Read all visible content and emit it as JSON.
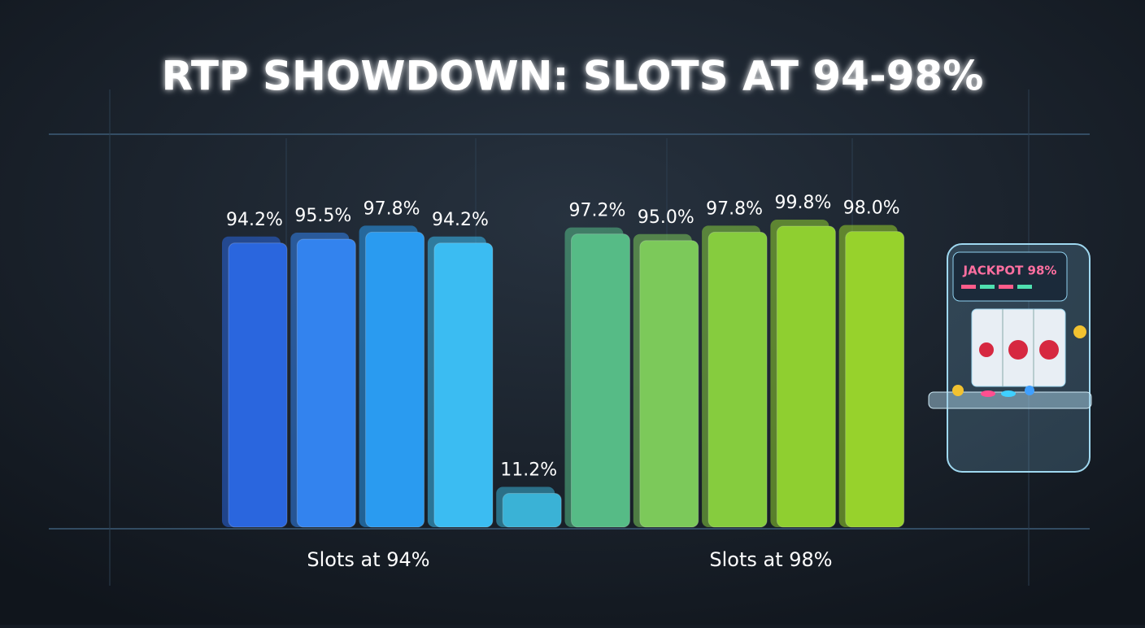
{
  "chart_data": {
    "type": "bar",
    "title": "RTP SHOWDOWN: SLOTS AT 94-98%",
    "categories": [
      null,
      null,
      null,
      null,
      null,
      null,
      null,
      null,
      null,
      null
    ],
    "values": [
      94.2,
      95.5,
      97.8,
      94.2,
      11.2,
      97.2,
      95.0,
      97.8,
      99.8,
      98.0
    ],
    "value_labels": [
      "94.2%",
      "95.5%",
      "97.8%",
      "94.2%",
      "11.2%",
      "97.2%",
      "95.0%",
      "97.8%",
      "99.8%",
      "98.0%"
    ],
    "colors": [
      "#2a66de",
      "#3383ee",
      "#2a9bf0",
      "#3bbcf2",
      "#3ab2d6",
      "#56bb86",
      "#7cc95a",
      "#86cc3e",
      "#8fcf30",
      "#97d22c"
    ],
    "group_labels": [
      "Slots at 94%",
      "Slots at 98%"
    ],
    "illustration_text": "JACKPOT 98%"
  }
}
